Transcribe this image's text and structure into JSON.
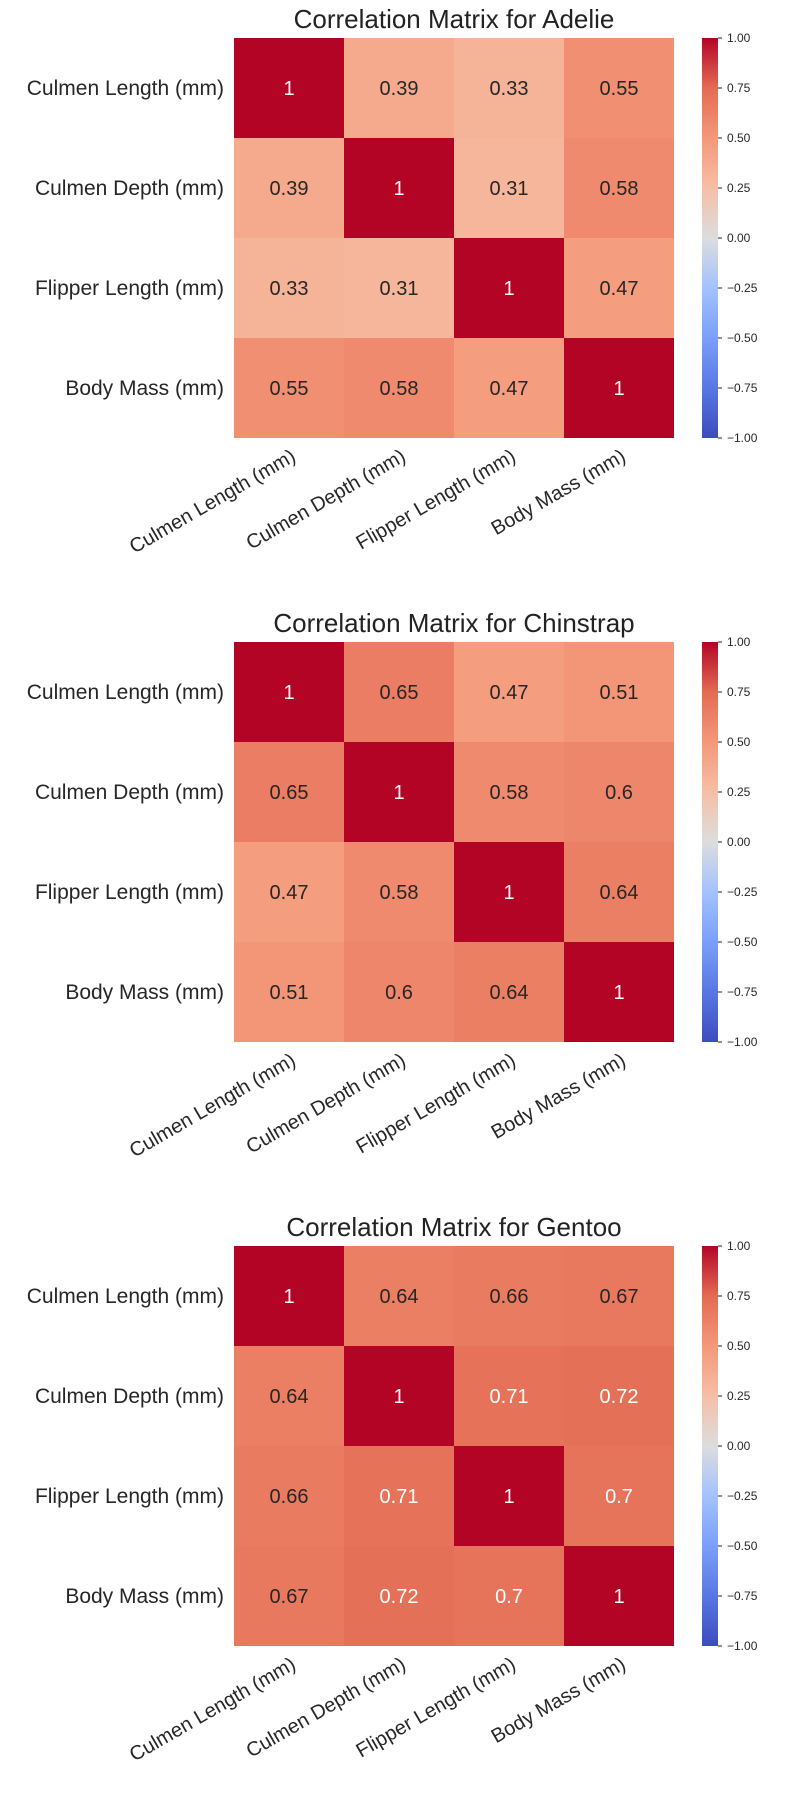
{
  "chart_data": [
    {
      "type": "heatmap",
      "title": "Correlation Matrix for Adelie",
      "rows": [
        "Culmen Length (mm)",
        "Culmen Depth (mm)",
        "Flipper Length (mm)",
        "Body Mass (mm)"
      ],
      "columns": [
        "Culmen Length (mm)",
        "Culmen Depth (mm)",
        "Flipper Length (mm)",
        "Body Mass (mm)"
      ],
      "values": [
        [
          1,
          0.39,
          0.33,
          0.55
        ],
        [
          0.39,
          1,
          0.31,
          0.58
        ],
        [
          0.33,
          0.31,
          1,
          0.47
        ],
        [
          0.55,
          0.58,
          0.47,
          1
        ]
      ],
      "colorbar": {
        "min": -1.0,
        "max": 1.0,
        "ticks": [
          "1.00",
          "0.75",
          "0.50",
          "0.25",
          "0.00",
          "−0.25",
          "−0.50",
          "−0.75",
          "−1.00"
        ]
      },
      "colormap": "coolwarm"
    },
    {
      "type": "heatmap",
      "title": "Correlation Matrix for Chinstrap",
      "rows": [
        "Culmen Length (mm)",
        "Culmen Depth (mm)",
        "Flipper Length (mm)",
        "Body Mass (mm)"
      ],
      "columns": [
        "Culmen Length (mm)",
        "Culmen Depth (mm)",
        "Flipper Length (mm)",
        "Body Mass (mm)"
      ],
      "values": [
        [
          1,
          0.65,
          0.47,
          0.51
        ],
        [
          0.65,
          1,
          0.58,
          0.6
        ],
        [
          0.47,
          0.58,
          1,
          0.64
        ],
        [
          0.51,
          0.6,
          0.64,
          1
        ]
      ],
      "colorbar": {
        "min": -1.0,
        "max": 1.0,
        "ticks": [
          "1.00",
          "0.75",
          "0.50",
          "0.25",
          "0.00",
          "−0.25",
          "−0.50",
          "−0.75",
          "−1.00"
        ]
      },
      "colormap": "coolwarm"
    },
    {
      "type": "heatmap",
      "title": "Correlation Matrix for Gentoo",
      "rows": [
        "Culmen Length (mm)",
        "Culmen Depth (mm)",
        "Flipper Length (mm)",
        "Body Mass (mm)"
      ],
      "columns": [
        "Culmen Length (mm)",
        "Culmen Depth (mm)",
        "Flipper Length (mm)",
        "Body Mass (mm)"
      ],
      "values": [
        [
          1,
          0.64,
          0.66,
          0.67
        ],
        [
          0.64,
          1,
          0.71,
          0.72
        ],
        [
          0.66,
          0.71,
          1,
          0.7
        ],
        [
          0.67,
          0.72,
          0.7,
          1
        ]
      ],
      "colorbar": {
        "min": -1.0,
        "max": 1.0,
        "ticks": [
          "1.00",
          "0.75",
          "0.50",
          "0.25",
          "0.00",
          "−0.25",
          "−0.50",
          "−0.75",
          "−1.00"
        ]
      },
      "colormap": "coolwarm"
    }
  ]
}
